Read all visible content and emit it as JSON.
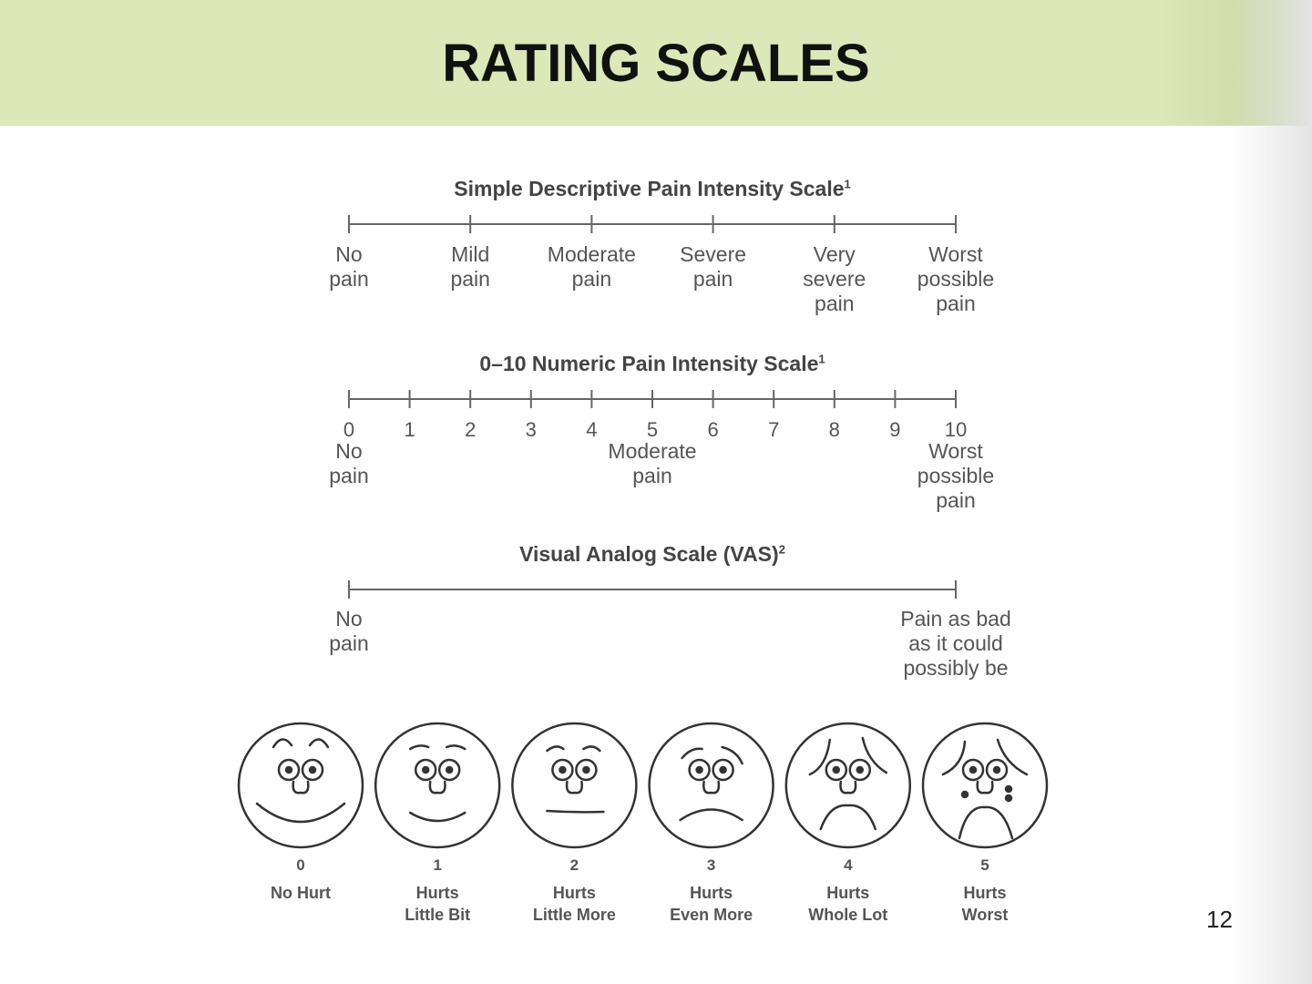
{
  "title": "RATING SCALES",
  "page_number": "12",
  "descriptive": {
    "title": "Simple Descriptive Pain Intensity Scale",
    "sup": "1",
    "labels": [
      "No\npain",
      "Mild\npain",
      "Moderate\npain",
      "Severe\npain",
      "Very\nsevere\npain",
      "Worst\npossible\npain"
    ]
  },
  "numeric": {
    "title": "0–10 Numeric Pain Intensity Scale",
    "sup": "1",
    "numbers": [
      "0",
      "1",
      "2",
      "3",
      "4",
      "5",
      "6",
      "7",
      "8",
      "9",
      "10"
    ],
    "anchor_left": "No\npain",
    "anchor_mid": "Moderate\npain",
    "anchor_right": "Worst\npossible\npain"
  },
  "vas": {
    "title": "Visual Analog Scale (VAS)",
    "sup": "2",
    "left": "No\npain",
    "right": "Pain as bad\nas it could\npossibly be"
  },
  "faces": [
    {
      "num": "0",
      "label": "No Hurt"
    },
    {
      "num": "1",
      "label": "Hurts\nLittle Bit"
    },
    {
      "num": "2",
      "label": "Hurts\nLittle More"
    },
    {
      "num": "3",
      "label": "Hurts\nEven More"
    },
    {
      "num": "4",
      "label": "Hurts\nWhole Lot"
    },
    {
      "num": "5",
      "label": "Hurts\nWorst"
    }
  ],
  "colors": {
    "header": "#dde8b8",
    "line": "#666666",
    "text": "#555555"
  }
}
